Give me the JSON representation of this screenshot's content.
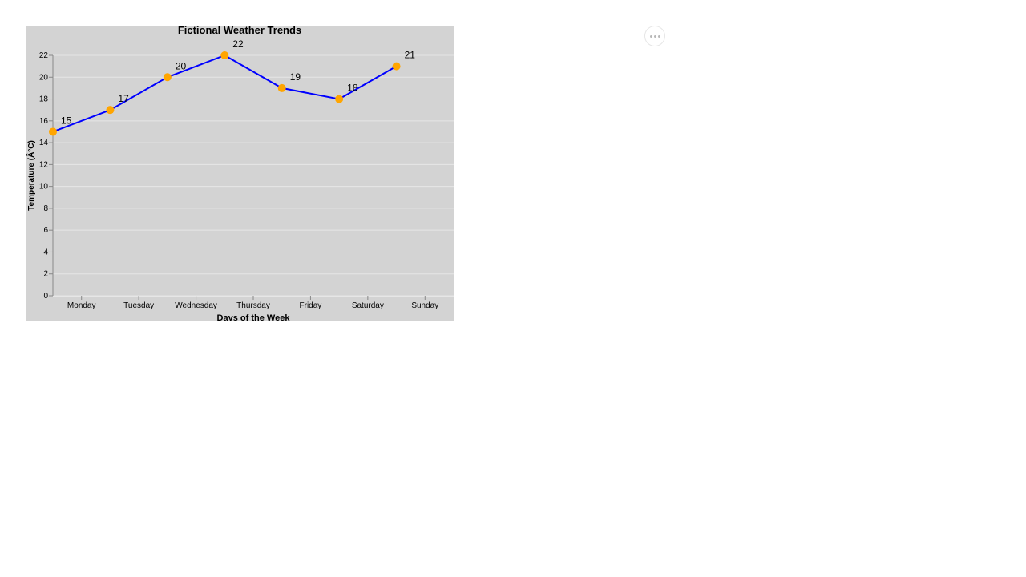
{
  "chart_data": {
    "type": "line",
    "title": "Fictional Weather Trends",
    "xlabel": "Days of the Week",
    "ylabel": "Temperature (Â°C)",
    "categories": [
      "Monday",
      "Tuesday",
      "Wednesday",
      "Thursday",
      "Friday",
      "Saturday",
      "Sunday"
    ],
    "series": [
      {
        "values": [
          15,
          17,
          20,
          22,
          19,
          18,
          21
        ]
      }
    ],
    "ylim": [
      0,
      22
    ],
    "yticks": [
      0,
      2,
      4,
      6,
      8,
      10,
      12,
      14,
      16,
      18,
      20,
      22
    ],
    "grid": true,
    "data_labels": true,
    "colors": {
      "line": "#0000ff",
      "points": "#ffa500",
      "background": "#d3d3d3",
      "grid": "#e6e6e6",
      "axis": "#888888",
      "text": "#000000"
    }
  },
  "toolbar": {
    "more_icon": "ellipsis-icon"
  }
}
